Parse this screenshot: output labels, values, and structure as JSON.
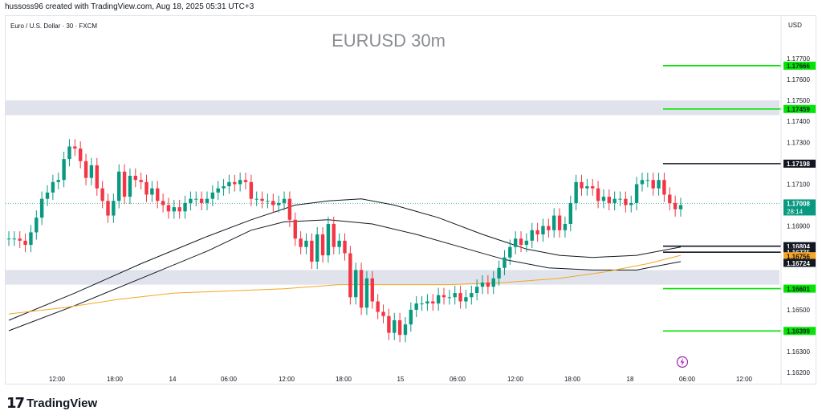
{
  "header": {
    "credit": "hussoss96 created with TradingView.com, Aug 18, 2025 05:31 UTC+3"
  },
  "footer": {
    "brand": "TradingView",
    "logo_icon": "tradingview-logo-icon"
  },
  "chart_data": {
    "type": "candlestick",
    "symbol_line": "Euro / U.S. Dollar · 30 · FXCM",
    "title": "EURUSD 30m",
    "currency_label": "USD",
    "ylim": [
      1.1617,
      1.1788
    ],
    "y_ticks": [
      "1.17700",
      "1.17600",
      "1.17500",
      "1.17400",
      "1.17300",
      "1.17100",
      "1.16900",
      "1.16500",
      "1.16300",
      "1.16200"
    ],
    "x_ticks": [
      "12:00",
      "18:00",
      "14",
      "06:00",
      "12:00",
      "18:00",
      "15",
      "06:00",
      "12:00",
      "18:00",
      "18",
      "06:00",
      "12:00"
    ],
    "colors": {
      "up": "#089981",
      "down": "#f23645",
      "support": "#00e600",
      "ma_slow": "#f5a623",
      "ma": "#131722",
      "zone": "#e0e3eb"
    },
    "zones": [
      {
        "from": 1.1743,
        "to": 1.175
      },
      {
        "from": 1.1662,
        "to": 1.1669
      }
    ],
    "levels": [
      {
        "value": 1.17666,
        "label": "1.17666",
        "color": "#00e600",
        "text_color": "#131722"
      },
      {
        "value": 1.17459,
        "label": "1.17459",
        "color": "#00e600",
        "text_color": "#131722"
      },
      {
        "value": 1.17198,
        "label": "1.17198",
        "color": "#131722",
        "text_color": "#ffffff"
      },
      {
        "value": 1.16804,
        "label": "1.16804",
        "color": "#131722",
        "text_color": "#ffffff"
      },
      {
        "value": 1.16775,
        "label": "1.16775",
        "color": "#131722",
        "text_color": "#ffffff"
      },
      {
        "value": 1.16601,
        "label": "1.16601",
        "color": "#00e600",
        "text_color": "#131722"
      },
      {
        "value": 1.16399,
        "label": "1.16399",
        "color": "#00e600",
        "text_color": "#131722"
      }
    ],
    "price_tags": [
      {
        "value": 1.16756,
        "label": "1.16756",
        "color": "#f5a623",
        "text_color": "#131722"
      },
      {
        "value": 1.16724,
        "label": "1.16724",
        "color": "#131722",
        "text_color": "#ffffff"
      }
    ],
    "last_price": {
      "value": 1.17008,
      "label": "1.17008",
      "countdown": "28:14",
      "color": "#089981"
    },
    "candles_close": [
      1.1684,
      1.1684,
      1.1683,
      1.1681,
      1.1687,
      1.1694,
      1.1703,
      1.1706,
      1.1711,
      1.1712,
      1.1722,
      1.1728,
      1.1727,
      1.1721,
      1.1713,
      1.1719,
      1.1708,
      1.1702,
      1.1695,
      1.1702,
      1.1716,
      1.1704,
      1.1714,
      1.1712,
      1.1711,
      1.1705,
      1.1708,
      1.1702,
      1.17,
      1.1697,
      1.1699,
      1.1697,
      1.1701,
      1.1703,
      1.1703,
      1.1701,
      1.1703,
      1.1706,
      1.1708,
      1.1709,
      1.1711,
      1.171,
      1.1712,
      1.1711,
      1.1703,
      1.1703,
      1.1702,
      1.1702,
      1.17,
      1.1701,
      1.1703,
      1.1693,
      1.1684,
      1.168,
      1.1683,
      1.1673,
      1.1686,
      1.1676,
      1.1691,
      1.168,
      1.1683,
      1.1677,
      1.1656,
      1.1669,
      1.1651,
      1.1665,
      1.1654,
      1.1649,
      1.1647,
      1.1639,
      1.1645,
      1.1638,
      1.1643,
      1.165,
      1.1653,
      1.1653,
      1.1654,
      1.1653,
      1.1657,
      1.1656,
      1.1656,
      1.1658,
      1.1654,
      1.1656,
      1.1658,
      1.1661,
      1.1663,
      1.1661,
      1.1665,
      1.167,
      1.1675,
      1.168,
      1.1684,
      1.1681,
      1.1683,
      1.1688,
      1.1686,
      1.169,
      1.1688,
      1.1695,
      1.1688,
      1.1691,
      1.1701,
      1.1711,
      1.1708,
      1.1709,
      1.1708,
      1.1702,
      1.1704,
      1.1701,
      1.1703,
      1.1703,
      1.17,
      1.1701,
      1.171,
      1.1712,
      1.1712,
      1.1708,
      1.1712,
      1.1705,
      1.1701,
      1.1698,
      1.17
    ],
    "ma_lines": [
      {
        "name_tag": "ma-upper-line",
        "color": "#131722",
        "points": [
          [
            0,
            1.1645
          ],
          [
            12,
            1.1658
          ],
          [
            24,
            1.1672
          ],
          [
            36,
            1.1685
          ],
          [
            44,
            1.1693
          ],
          [
            52,
            1.17
          ],
          [
            58,
            1.1702
          ],
          [
            64,
            1.1703
          ],
          [
            70,
            1.17
          ],
          [
            78,
            1.1694
          ],
          [
            86,
            1.1686
          ],
          [
            94,
            1.1679
          ],
          [
            100,
            1.1676
          ],
          [
            106,
            1.1675
          ],
          [
            114,
            1.1676
          ],
          [
            122,
            1.168
          ]
        ]
      },
      {
        "name_tag": "ma-lower-line",
        "color": "#131722",
        "points": [
          [
            0,
            1.164
          ],
          [
            12,
            1.1652
          ],
          [
            24,
            1.1665
          ],
          [
            36,
            1.1678
          ],
          [
            44,
            1.1688
          ],
          [
            50,
            1.1692
          ],
          [
            58,
            1.1693
          ],
          [
            66,
            1.1691
          ],
          [
            74,
            1.1686
          ],
          [
            82,
            1.168
          ],
          [
            90,
            1.1674
          ],
          [
            98,
            1.167
          ],
          [
            106,
            1.1669
          ],
          [
            114,
            1.1669
          ],
          [
            122,
            1.1673
          ]
        ]
      },
      {
        "name_tag": "ma-slow-line",
        "color": "#f5a623",
        "points": [
          [
            0,
            1.1648
          ],
          [
            10,
            1.1651
          ],
          [
            20,
            1.1655
          ],
          [
            30,
            1.1658
          ],
          [
            40,
            1.1659
          ],
          [
            50,
            1.166
          ],
          [
            60,
            1.1662
          ],
          [
            70,
            1.1662
          ],
          [
            80,
            1.1662
          ],
          [
            90,
            1.1663
          ],
          [
            100,
            1.1665
          ],
          [
            108,
            1.1668
          ],
          [
            116,
            1.1672
          ],
          [
            122,
            1.1676
          ]
        ]
      }
    ],
    "flash_icon": "lightning-icon"
  }
}
